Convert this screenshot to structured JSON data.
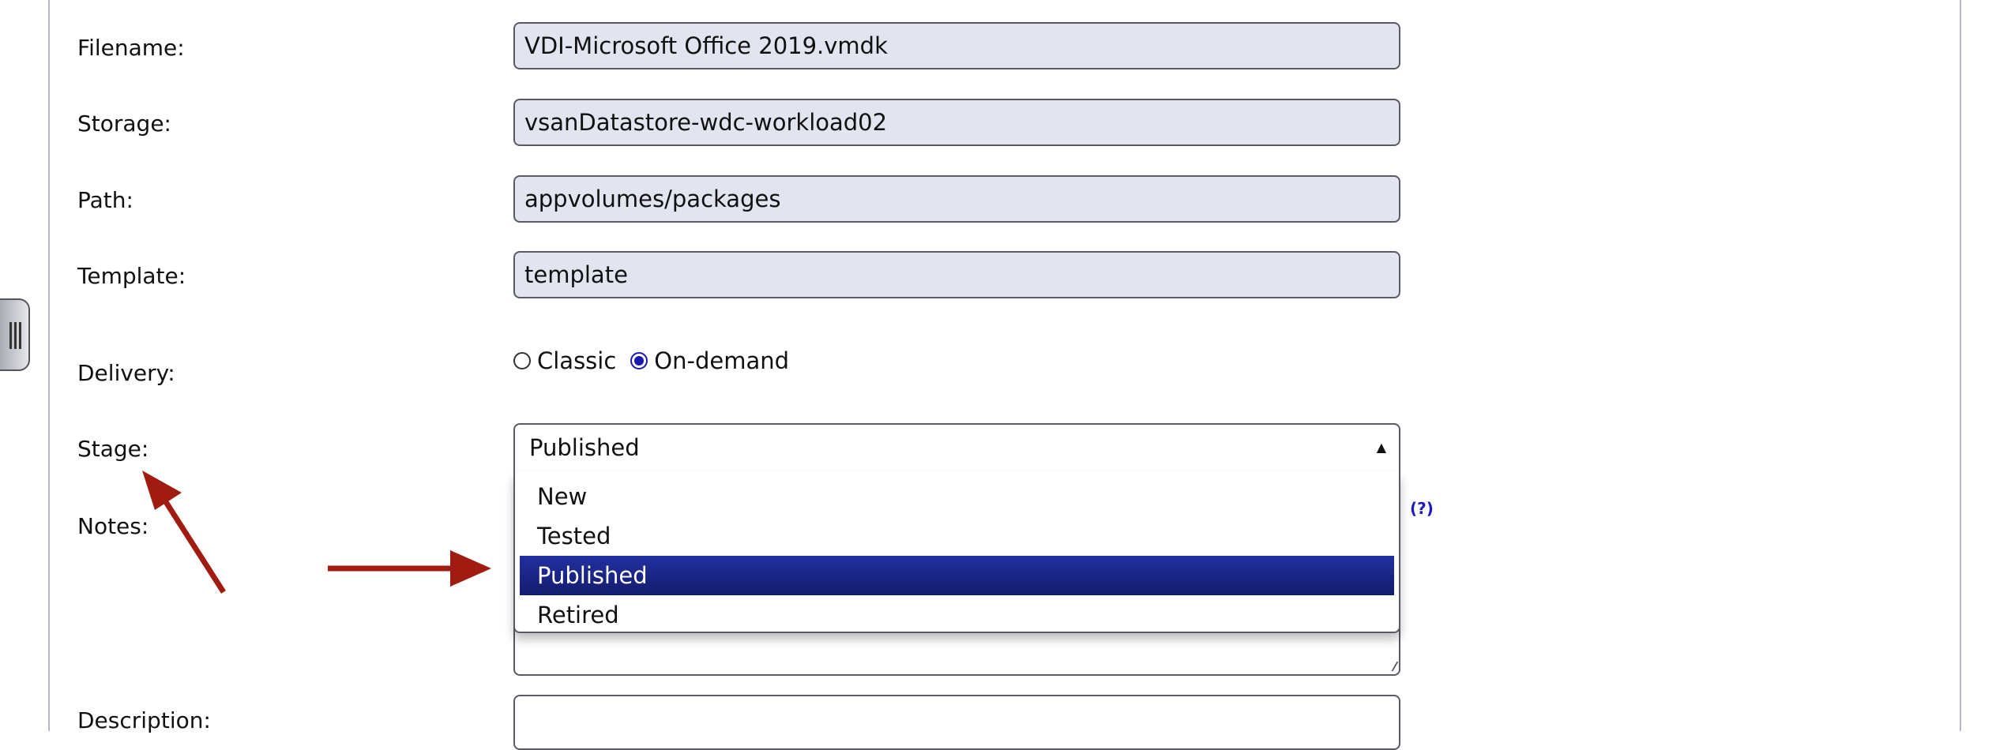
{
  "form": {
    "filename": {
      "label": "Filename:",
      "value": "VDI-Microsoft Office 2019.vmdk"
    },
    "storage": {
      "label": "Storage:",
      "value": "vsanDatastore-wdc-workload02"
    },
    "path": {
      "label": "Path:",
      "value": "appvolumes/packages"
    },
    "template": {
      "label": "Template:",
      "value": "template"
    },
    "delivery": {
      "label": "Delivery:",
      "options": [
        "Classic",
        "On-demand"
      ],
      "selected": "On-demand"
    },
    "stage": {
      "label": "Stage:",
      "value": "Published",
      "options": [
        "New",
        "Tested",
        "Published",
        "Retired"
      ],
      "expanded": true
    },
    "notes": {
      "label": "Notes:",
      "help": "(?)"
    },
    "description": {
      "label": "Description:"
    }
  },
  "colors": {
    "accent": "#1a1ab0",
    "highlight": "#1e2a96",
    "field_bg": "#e2e4ef",
    "annotation_arrow": "#a01b10"
  },
  "icons": {
    "sidebar_handle": "grip-lines-icon",
    "select_caret": "caret-up-icon"
  }
}
